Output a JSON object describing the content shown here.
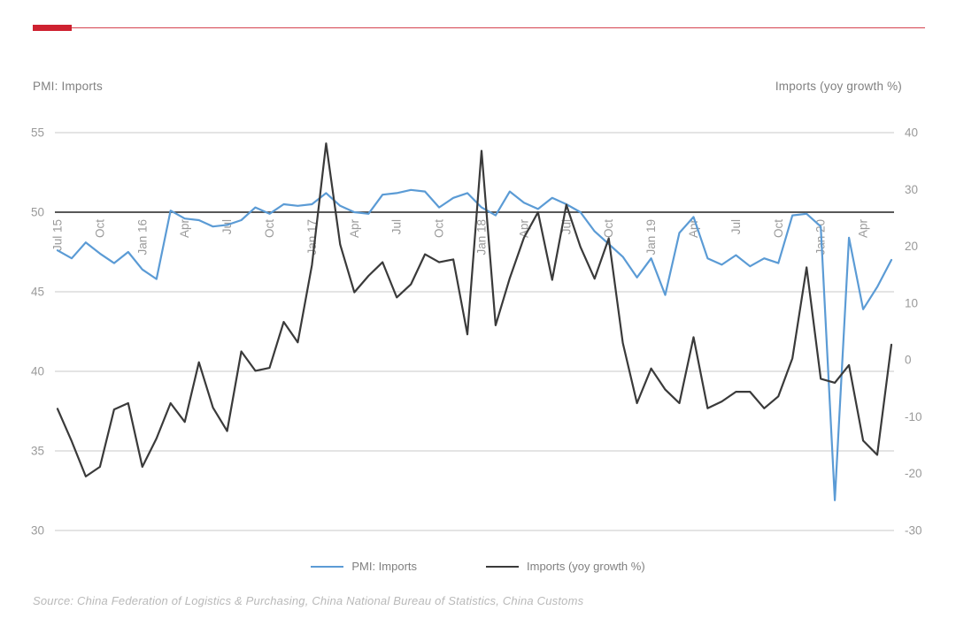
{
  "page": {
    "accent_color": "#ce2130",
    "grid_color": "#c8c8c8",
    "baseline_color": "#404040",
    "axis_text_color": "#9a9a9a"
  },
  "titles": {
    "left_axis_title": "PMI: Imports",
    "right_axis_title": "Imports (yoy growth %)"
  },
  "legend": [
    {
      "label": "PMI: Imports",
      "color": "#5b9bd5"
    },
    {
      "label": "Imports (yoy growth %)",
      "color": "#3a3a3a"
    }
  ],
  "source": "Source: China Federation of Logistics & Purchasing, China National Bureau of Statistics, China Customs",
  "chart_data": {
    "type": "line",
    "x": [
      "Jul 15",
      "Aug 15",
      "Sep 15",
      "Oct 15",
      "Nov 15",
      "Dec 15",
      "Jan 16",
      "Feb 16",
      "Mar 16",
      "Apr 16",
      "May 16",
      "Jun 16",
      "Jul 16",
      "Aug 16",
      "Sep 16",
      "Oct 16",
      "Nov 16",
      "Dec 16",
      "Jan 17",
      "Feb 17",
      "Mar 17",
      "Apr 17",
      "May 17",
      "Jun 17",
      "Jul 17",
      "Aug 17",
      "Sep 17",
      "Oct 17",
      "Nov 17",
      "Dec 17",
      "Jan 18",
      "Feb 18",
      "Mar 18",
      "Apr 18",
      "May 18",
      "Jun 18",
      "Jul 18",
      "Aug 18",
      "Sep 18",
      "Oct 18",
      "Nov 18",
      "Dec 18",
      "Jan 19",
      "Feb 19",
      "Mar 19",
      "Apr 19",
      "May 19",
      "Jun 19",
      "Jul 19",
      "Aug 19",
      "Sep 19",
      "Oct 19",
      "Nov 19",
      "Dec 19",
      "Jan 20",
      "Feb 20",
      "Mar 20",
      "Apr 20",
      "May 20",
      "Jun 20"
    ],
    "x_tick_labels": [
      "Jul 15",
      "Oct",
      "Jan 16",
      "Apr",
      "Jul",
      "Oct",
      "Jan 17",
      "Apr",
      "Jul",
      "Oct",
      "Jan 18",
      "Apr",
      "Jul",
      "Oct",
      "Jan 19",
      "Apr",
      "Jul",
      "Oct",
      "Jan 20",
      "Apr"
    ],
    "x_tick_every": 3,
    "series": [
      {
        "name": "PMI: Imports",
        "axis": "left",
        "color": "#5b9bd5",
        "values": [
          47.6,
          47.1,
          48.1,
          47.4,
          46.8,
          47.5,
          46.4,
          45.8,
          50.1,
          49.6,
          49.5,
          49.1,
          49.2,
          49.5,
          50.3,
          49.9,
          50.5,
          50.4,
          50.5,
          51.2,
          50.4,
          50.0,
          49.9,
          51.1,
          51.2,
          51.4,
          51.3,
          50.3,
          50.9,
          51.2,
          50.3,
          49.8,
          51.3,
          50.6,
          50.2,
          50.9,
          50.5,
          50.0,
          48.8,
          48.0,
          47.2,
          45.9,
          47.1,
          44.8,
          48.7,
          49.7,
          47.1,
          46.7,
          47.3,
          46.6,
          47.1,
          46.8,
          49.8,
          49.9,
          49.1,
          31.9,
          48.4,
          43.9,
          45.3,
          47.0
        ]
      },
      {
        "name": "Imports (yoy growth %)",
        "axis": "right",
        "color": "#3a3a3a",
        "values": [
          -8.6,
          -14.3,
          -20.5,
          -18.8,
          -8.7,
          -7.6,
          -18.8,
          -13.8,
          -7.6,
          -10.9,
          -0.4,
          -8.4,
          -12.5,
          1.5,
          -1.9,
          -1.4,
          6.7,
          3.1,
          16.7,
          38.1,
          20.3,
          11.9,
          14.8,
          17.2,
          11.0,
          13.3,
          18.6,
          17.2,
          17.7,
          4.5,
          36.8,
          6.1,
          14.4,
          21.5,
          26.0,
          14.1,
          27.3,
          19.9,
          14.3,
          21.4,
          3.0,
          -7.6,
          -1.5,
          -5.2,
          -7.6,
          4.0,
          -8.5,
          -7.3,
          -5.6,
          -5.6,
          -8.5,
          -6.4,
          0.3,
          16.3,
          -3.3,
          -4.0,
          -0.9,
          -14.2,
          -16.7,
          2.7
        ]
      }
    ],
    "left_axis": {
      "min": 30,
      "max": 55,
      "ticks": [
        55,
        50,
        45,
        40,
        35,
        30
      ]
    },
    "right_axis": {
      "min": -30,
      "max": 40,
      "ticks": [
        40,
        30,
        20,
        10,
        0,
        -10,
        -20,
        -30
      ]
    },
    "baseline_value_left": 50,
    "grid": true,
    "legend_position": "bottom"
  }
}
